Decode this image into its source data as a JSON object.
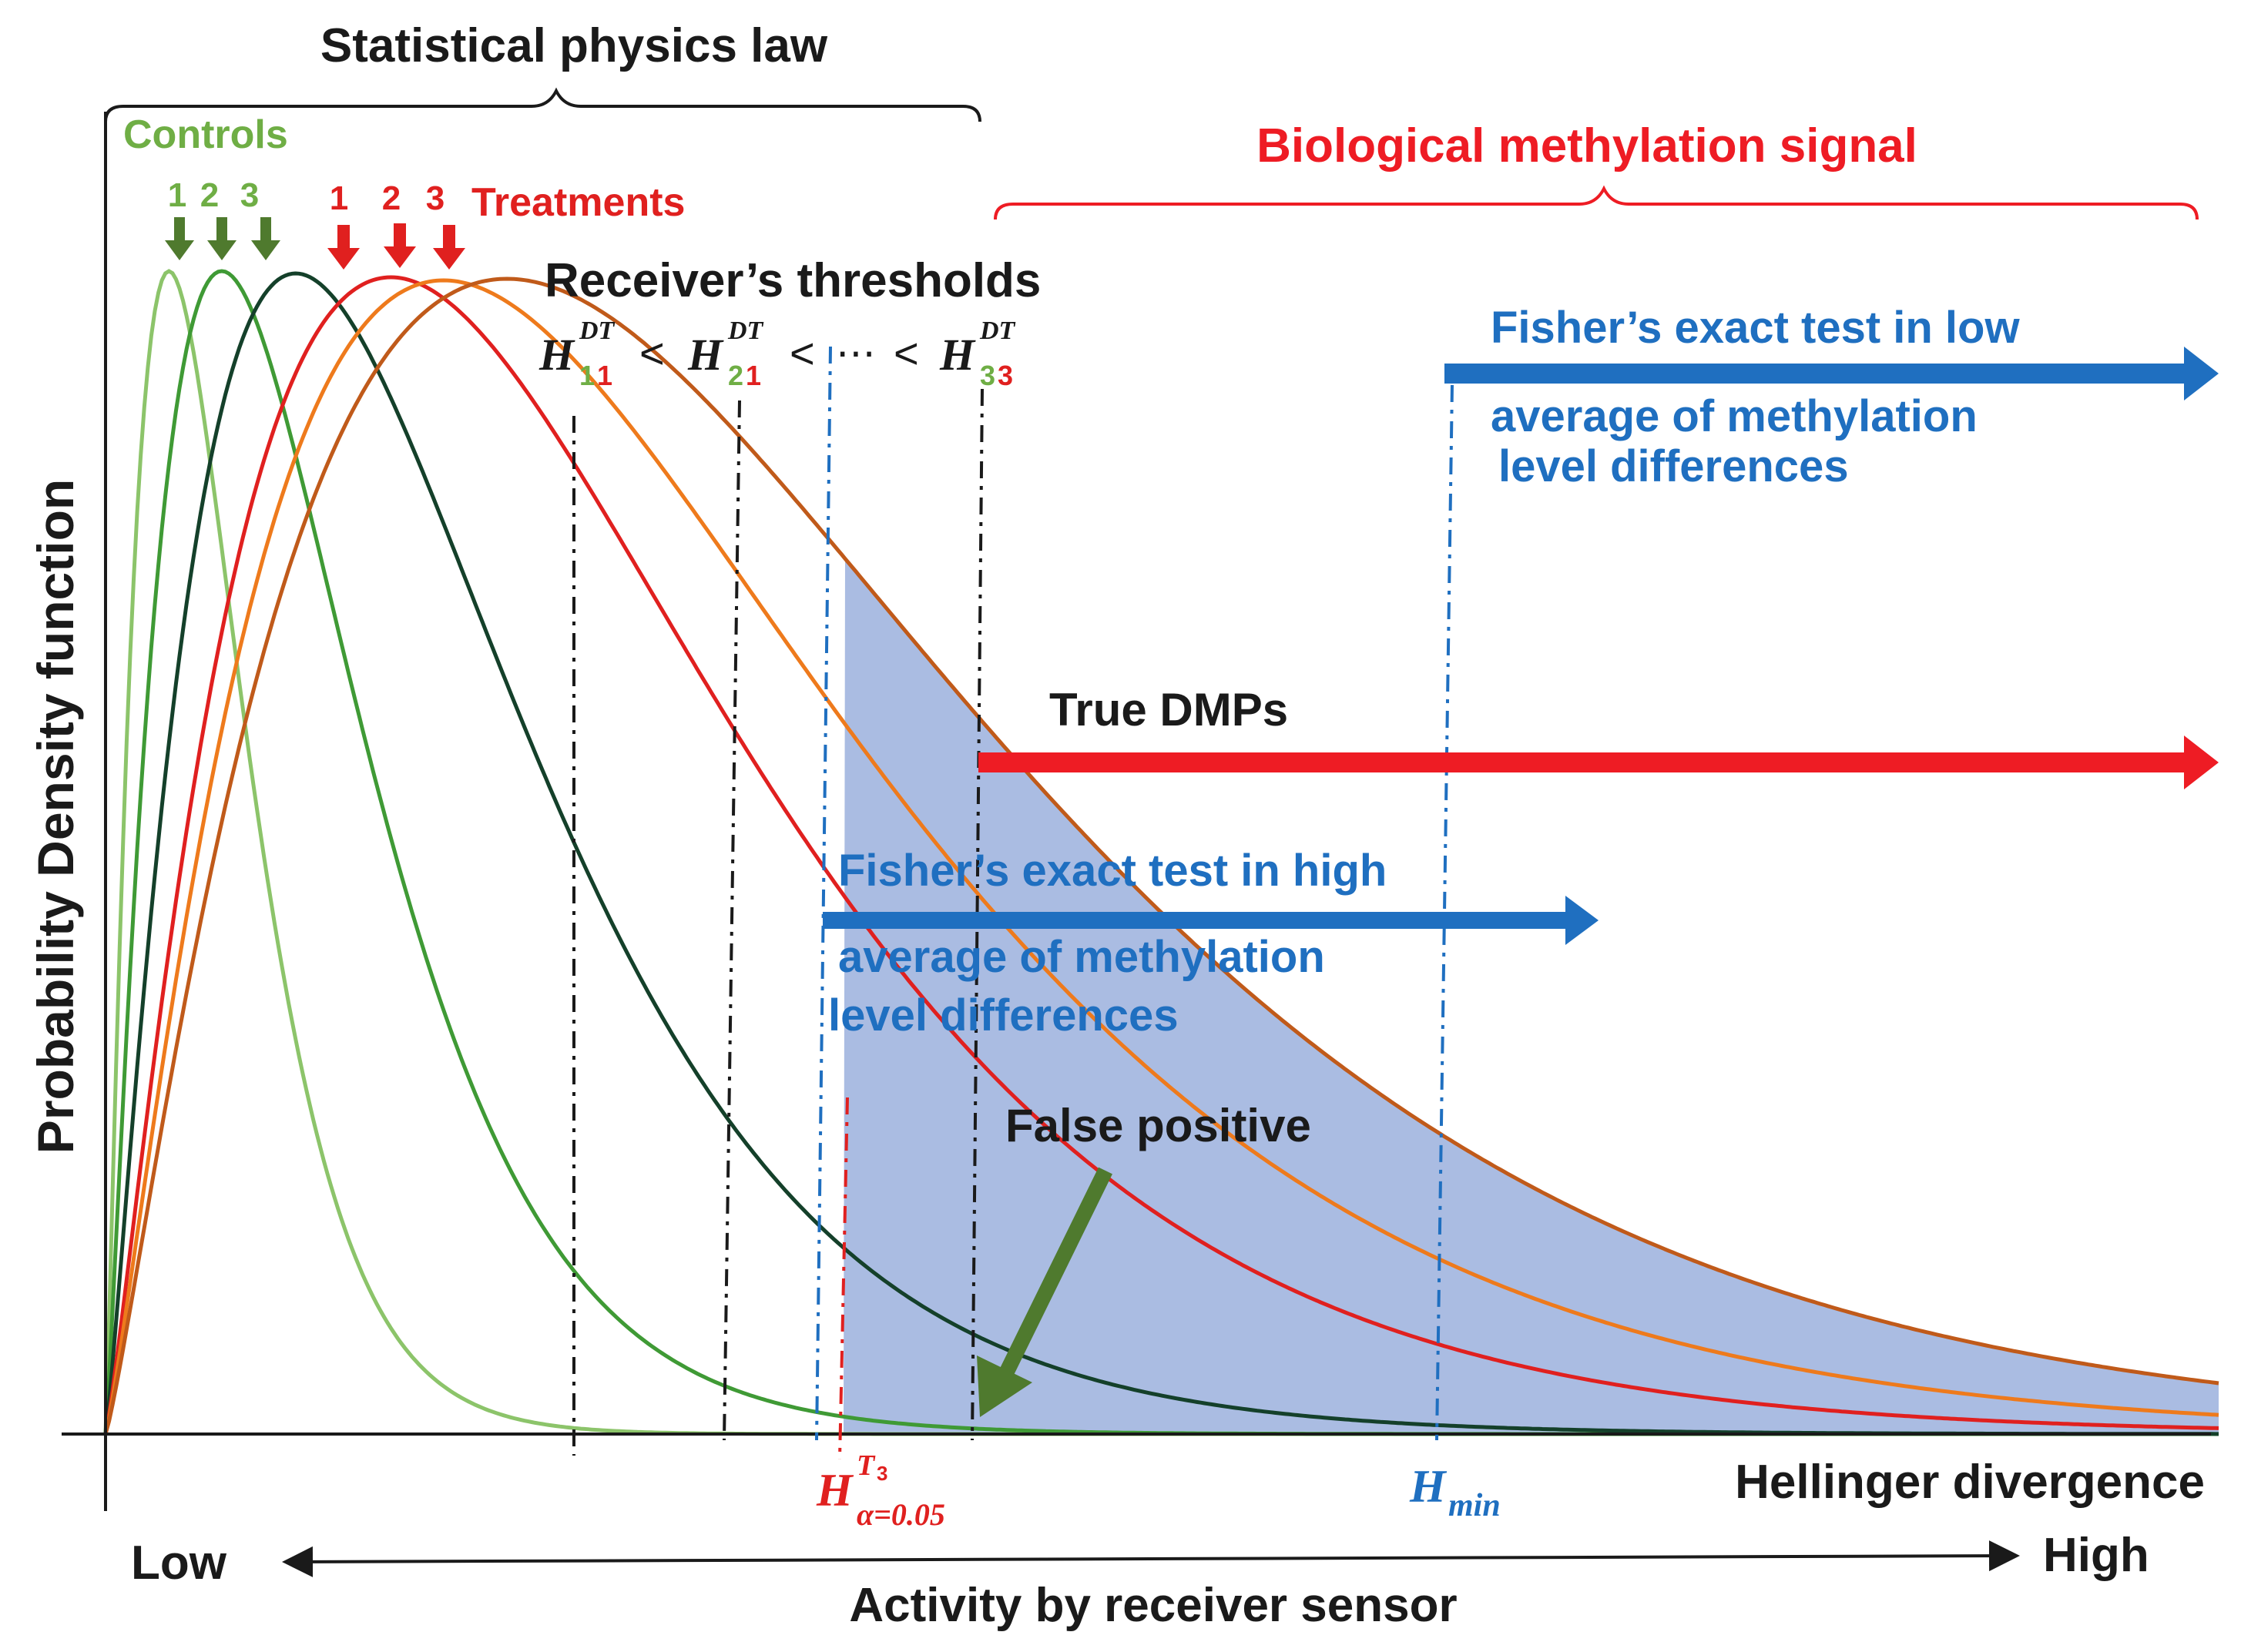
{
  "colors": {
    "control1": "#8cc46a",
    "control2": "#3f9a35",
    "control3": "#14402a",
    "treatment1": "#e0201f",
    "treatment2": "#ee7a1c",
    "treatment3": "#c05a1a",
    "signal_red": "#ee1c24",
    "fisher_blue": "#1f6fc0",
    "shade": "#8ea6d8",
    "axis": "#1a1a1a",
    "green_arrow": "#4f7a2e"
  },
  "labels": {
    "statistical_physics_law": "Statistical physics law",
    "controls": "Controls",
    "control_numbers": [
      "1",
      "2",
      "3"
    ],
    "treatments": "Treatments",
    "treatment_numbers": [
      "1",
      "2",
      "3"
    ],
    "biological_signal": "Biological methylation signal",
    "receivers_thresholds": "Receiver’s thresholds",
    "threshold_base": "H",
    "threshold_sup": "DT",
    "threshold_sub": [
      [
        "1",
        "1"
      ],
      [
        "2",
        "1"
      ],
      [
        "3",
        "3"
      ]
    ],
    "lt": "<",
    "ellipsis": "⋯",
    "fisher_low_1": "Fisher’s  exact test in low",
    "fisher_low_2": "average of methylation",
    "fisher_low_3": "level differences",
    "true_dmps": "True DMPs",
    "fisher_high_1": "Fisher’s  exact test in high",
    "fisher_high_2": "average of methylation",
    "fisher_high_3": "level differences",
    "false_positive": "False positive",
    "h_alpha_base": "H",
    "h_alpha_sup": "T",
    "h_alpha_sup_sub": "3",
    "h_alpha_sub": "α=0.05",
    "h_min_base": "H",
    "h_min_sub": "min",
    "x_axis_right": "Hellinger divergence",
    "low": "Low",
    "high": "High",
    "activity": "Activity by receiver sensor",
    "y_axis": "Probability Density function"
  },
  "curves": [
    {
      "name": "control-1",
      "group": "control",
      "mode": 0.03,
      "shape": 2.2
    },
    {
      "name": "control-2",
      "group": "control",
      "mode": 0.055,
      "shape": 2.2
    },
    {
      "name": "control-3",
      "group": "control",
      "mode": 0.09,
      "shape": 2.2
    },
    {
      "name": "treatment-1",
      "group": "treatment",
      "mode": 0.135,
      "shape": 2.2
    },
    {
      "name": "treatment-2",
      "group": "treatment",
      "mode": 0.16,
      "shape": 2.2
    },
    {
      "name": "treatment-3",
      "group": "treatment",
      "mode": 0.19,
      "shape": 2.2
    }
  ]
}
